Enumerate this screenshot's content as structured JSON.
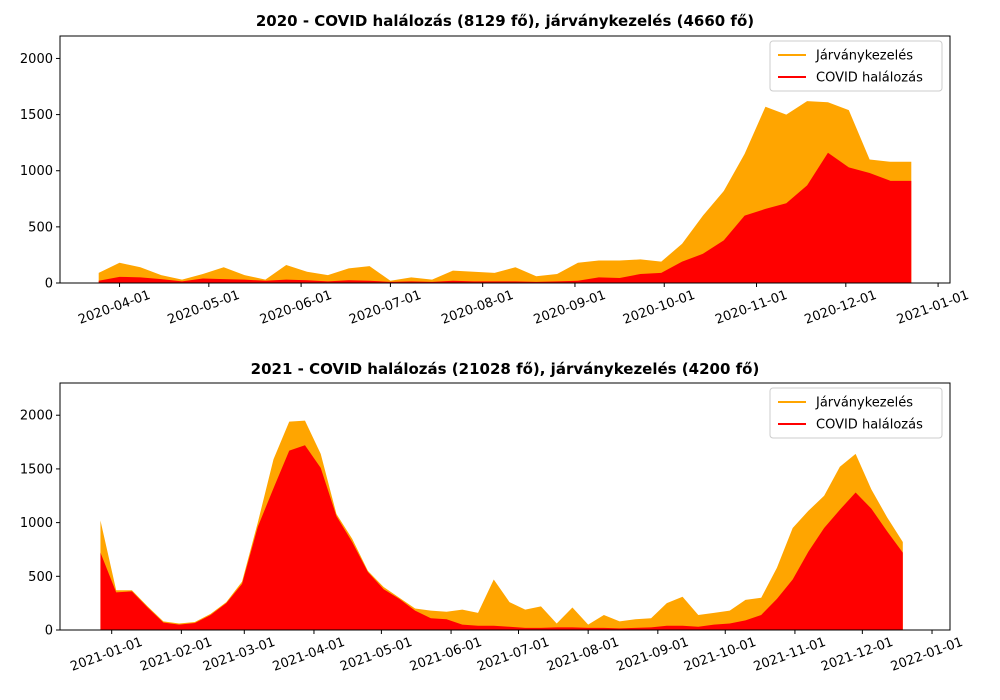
{
  "chart_data": [
    {
      "type": "area",
      "title": "2020 - COVID halálozás (8129 fő), járványkezelés (4660 fő)",
      "xlim": [
        "2020-03-12",
        "2021-01-05"
      ],
      "ylim": [
        0,
        2200
      ],
      "yticks": [
        0,
        500,
        1000,
        1500,
        2000
      ],
      "xticks": [
        "2020-04-01",
        "2020-05-01",
        "2020-06-01",
        "2020-07-01",
        "2020-08-01",
        "2020-09-01",
        "2020-10-01",
        "2020-11-01",
        "2020-12-01",
        "2021-01-01"
      ],
      "legend_position": "top-right",
      "legend": [
        "Járványkezelés",
        "COVID halálozás"
      ],
      "colors": {
        "total": "#ffa500",
        "covid": "#ff0000"
      },
      "x": [
        "2020-03-25",
        "2020-04-01",
        "2020-04-08",
        "2020-04-15",
        "2020-04-22",
        "2020-04-29",
        "2020-05-06",
        "2020-05-13",
        "2020-05-20",
        "2020-05-27",
        "2020-06-03",
        "2020-06-10",
        "2020-06-17",
        "2020-06-24",
        "2020-07-01",
        "2020-07-08",
        "2020-07-15",
        "2020-07-22",
        "2020-07-29",
        "2020-08-05",
        "2020-08-12",
        "2020-08-19",
        "2020-08-26",
        "2020-09-02",
        "2020-09-09",
        "2020-09-16",
        "2020-09-23",
        "2020-09-30",
        "2020-10-07",
        "2020-10-14",
        "2020-10-21",
        "2020-10-28",
        "2020-11-04",
        "2020-11-11",
        "2020-11-18",
        "2020-11-25",
        "2020-12-02",
        "2020-12-09",
        "2020-12-16",
        "2020-12-23"
      ],
      "series": [
        {
          "name": "Járványkezelés",
          "values": [
            90,
            180,
            140,
            70,
            30,
            80,
            140,
            70,
            30,
            160,
            100,
            70,
            130,
            150,
            20,
            50,
            30,
            110,
            100,
            90,
            140,
            60,
            80,
            180,
            200,
            200,
            210,
            190,
            350,
            600,
            820,
            1150,
            1570,
            1500,
            1620,
            1610,
            1540,
            1100,
            1080,
            1080
          ]
        },
        {
          "name": "COVID halálozás",
          "values": [
            20,
            55,
            50,
            35,
            15,
            40,
            35,
            30,
            20,
            30,
            25,
            15,
            25,
            20,
            10,
            15,
            10,
            20,
            15,
            15,
            15,
            10,
            15,
            20,
            50,
            45,
            80,
            90,
            190,
            260,
            380,
            600,
            660,
            710,
            870,
            1160,
            1030,
            980,
            910,
            910
          ]
        }
      ]
    },
    {
      "type": "area",
      "title": "2021 - COVID halálozás (21028 fő), járványkezelés (4200 fő)",
      "xlim": [
        "2020-12-09",
        "2022-01-09"
      ],
      "ylim": [
        0,
        2300
      ],
      "yticks": [
        0,
        500,
        1000,
        1500,
        2000
      ],
      "xticks": [
        "2021-01-01",
        "2021-02-01",
        "2021-03-01",
        "2021-04-01",
        "2021-05-01",
        "2021-06-01",
        "2021-07-01",
        "2021-08-01",
        "2021-09-01",
        "2021-10-01",
        "2021-11-01",
        "2021-12-01",
        "2022-01-01"
      ],
      "legend_position": "top-right",
      "legend": [
        "Járványkezelés",
        "COVID halálozás"
      ],
      "colors": {
        "total": "#ffa500",
        "covid": "#ff0000"
      },
      "x": [
        "2020-12-27",
        "2021-01-03",
        "2021-01-10",
        "2021-01-17",
        "2021-01-24",
        "2021-01-31",
        "2021-02-07",
        "2021-02-14",
        "2021-02-21",
        "2021-02-28",
        "2021-03-07",
        "2021-03-14",
        "2021-03-21",
        "2021-03-28",
        "2021-04-04",
        "2021-04-11",
        "2021-04-18",
        "2021-04-25",
        "2021-05-02",
        "2021-05-09",
        "2021-05-16",
        "2021-05-23",
        "2021-05-30",
        "2021-06-06",
        "2021-06-13",
        "2021-06-20",
        "2021-06-27",
        "2021-07-04",
        "2021-07-11",
        "2021-07-18",
        "2021-07-25",
        "2021-08-01",
        "2021-08-08",
        "2021-08-15",
        "2021-08-22",
        "2021-08-29",
        "2021-09-05",
        "2021-09-12",
        "2021-09-19",
        "2021-09-26",
        "2021-10-03",
        "2021-10-10",
        "2021-10-17",
        "2021-10-24",
        "2021-10-31",
        "2021-11-07",
        "2021-11-14",
        "2021-11-21",
        "2021-11-28",
        "2021-12-05",
        "2021-12-12",
        "2021-12-19"
      ],
      "series": [
        {
          "name": "Járványkezelés",
          "values": [
            1020,
            370,
            370,
            220,
            80,
            60,
            75,
            150,
            260,
            450,
            1000,
            1590,
            1940,
            1950,
            1640,
            1080,
            850,
            550,
            400,
            300,
            200,
            180,
            170,
            190,
            160,
            470,
            260,
            190,
            220,
            60,
            210,
            50,
            140,
            80,
            100,
            110,
            250,
            310,
            140,
            160,
            180,
            280,
            300,
            580,
            950,
            1110,
            1250,
            1520,
            1640,
            1310,
            1050,
            820
          ]
        },
        {
          "name": "COVID halálozás",
          "values": [
            720,
            350,
            360,
            210,
            70,
            50,
            65,
            140,
            250,
            430,
            960,
            1320,
            1670,
            1720,
            1510,
            1060,
            820,
            540,
            380,
            290,
            180,
            110,
            100,
            50,
            40,
            40,
            30,
            20,
            20,
            25,
            25,
            20,
            20,
            15,
            20,
            25,
            40,
            40,
            30,
            50,
            60,
            90,
            140,
            290,
            470,
            730,
            950,
            1120,
            1280,
            1130,
            920,
            720
          ]
        }
      ]
    }
  ]
}
